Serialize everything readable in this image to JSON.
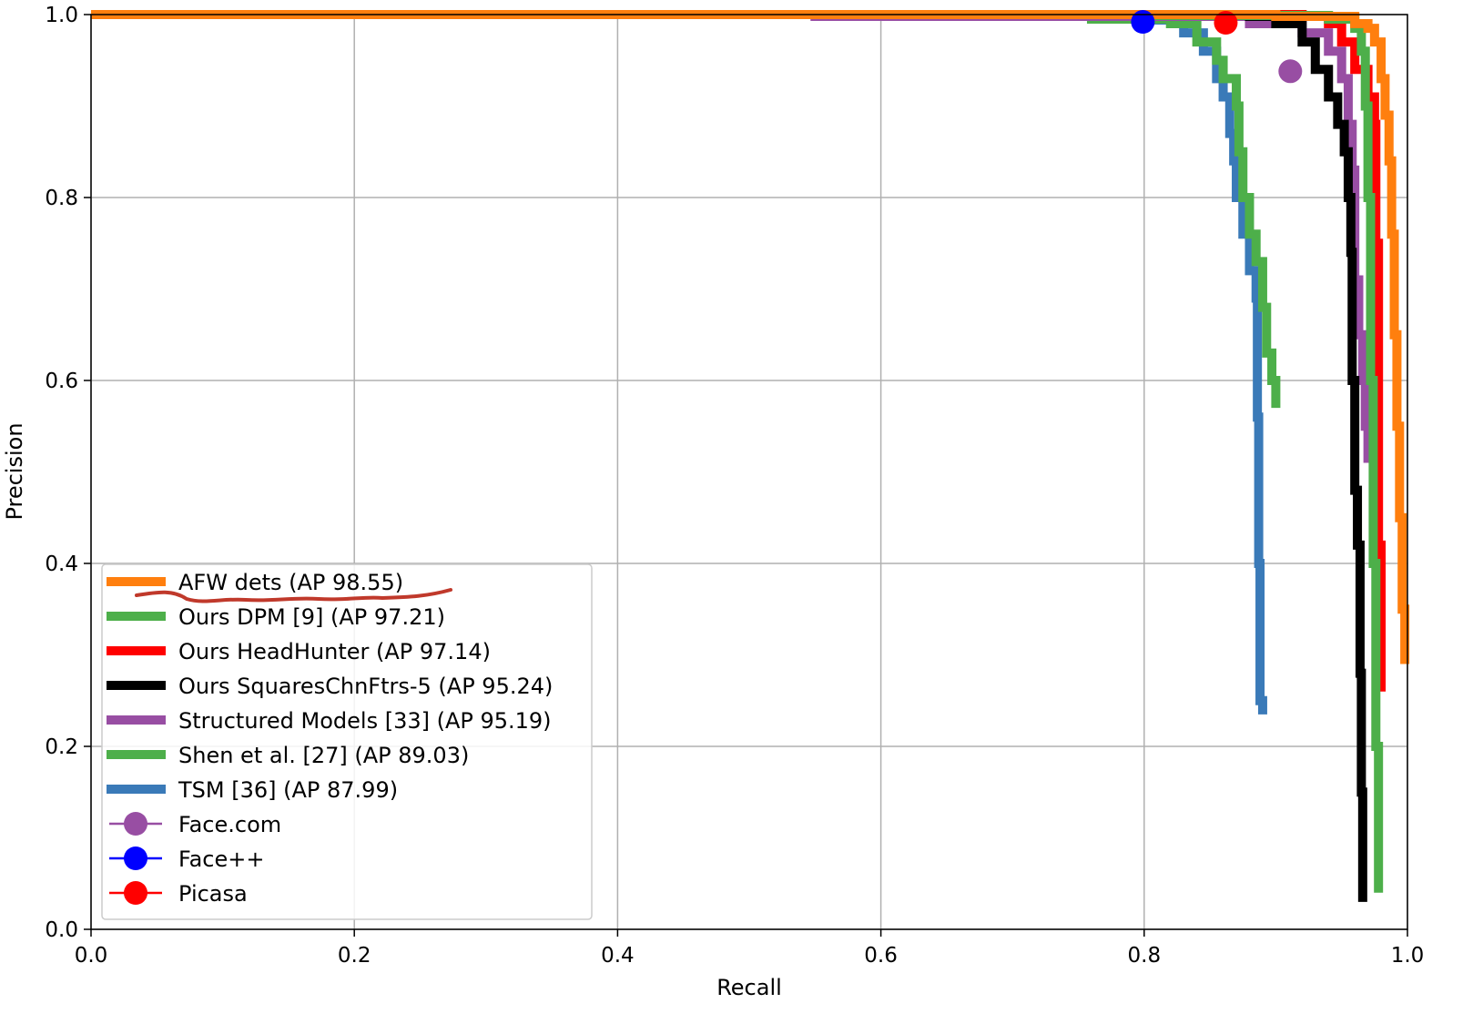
{
  "chart_data": {
    "type": "line",
    "title": "",
    "xlabel": "Recall",
    "ylabel": "Precision",
    "xlim": [
      0.0,
      1.0
    ],
    "ylim": [
      0.0,
      1.0
    ],
    "grid": true,
    "legend_position": "lower-left",
    "x_ticks": [
      "0.0",
      "0.2",
      "0.4",
      "0.6",
      "0.8",
      "1.0"
    ],
    "y_ticks": [
      "0.0",
      "0.2",
      "0.4",
      "0.6",
      "0.8",
      "1.0"
    ],
    "series": [
      {
        "name": "TSM [36] (AP 87.99)",
        "color": "#3a7ab8",
        "points": [
          [
            0.0,
            1.0
          ],
          [
            0.76,
            0.998
          ],
          [
            0.8,
            0.994
          ],
          [
            0.83,
            0.98
          ],
          [
            0.845,
            0.96
          ],
          [
            0.855,
            0.93
          ],
          [
            0.86,
            0.91
          ],
          [
            0.865,
            0.87
          ],
          [
            0.868,
            0.84
          ],
          [
            0.87,
            0.8
          ],
          [
            0.875,
            0.76
          ],
          [
            0.88,
            0.72
          ],
          [
            0.885,
            0.69
          ],
          [
            0.886,
            0.56
          ],
          [
            0.887,
            0.4
          ],
          [
            0.888,
            0.25
          ],
          [
            0.89,
            0.235
          ]
        ]
      },
      {
        "name": "Shen et al. [27] (AP 89.03)",
        "color": "#4daf4a",
        "points": [
          [
            0.0,
            1.0
          ],
          [
            0.76,
            0.995
          ],
          [
            0.82,
            0.99
          ],
          [
            0.84,
            0.97
          ],
          [
            0.855,
            0.95
          ],
          [
            0.86,
            0.93
          ],
          [
            0.87,
            0.9
          ],
          [
            0.872,
            0.85
          ],
          [
            0.875,
            0.8
          ],
          [
            0.88,
            0.76
          ],
          [
            0.885,
            0.73
          ],
          [
            0.89,
            0.68
          ],
          [
            0.893,
            0.63
          ],
          [
            0.897,
            0.6
          ],
          [
            0.9,
            0.57
          ]
        ]
      },
      {
        "name": "Structured Models [33] (AP 95.19)",
        "color": "#984ea3",
        "points": [
          [
            0.0,
            1.0
          ],
          [
            0.55,
            0.998
          ],
          [
            0.6,
            0.998
          ],
          [
            0.88,
            0.99
          ],
          [
            0.92,
            0.98
          ],
          [
            0.94,
            0.96
          ],
          [
            0.95,
            0.93
          ],
          [
            0.955,
            0.88
          ],
          [
            0.958,
            0.83
          ],
          [
            0.96,
            0.71
          ],
          [
            0.963,
            0.65
          ],
          [
            0.966,
            0.6
          ],
          [
            0.968,
            0.55
          ],
          [
            0.97,
            0.51
          ]
        ]
      },
      {
        "name": "Ours SquaresChnFtrs-5 (AP 95.24)",
        "color": "#000000",
        "points": [
          [
            0.0,
            1.0
          ],
          [
            0.88,
            0.998
          ],
          [
            0.9,
            0.99
          ],
          [
            0.92,
            0.97
          ],
          [
            0.93,
            0.94
          ],
          [
            0.94,
            0.91
          ],
          [
            0.947,
            0.88
          ],
          [
            0.952,
            0.85
          ],
          [
            0.955,
            0.8
          ],
          [
            0.957,
            0.74
          ],
          [
            0.958,
            0.6
          ],
          [
            0.96,
            0.48
          ],
          [
            0.962,
            0.42
          ],
          [
            0.964,
            0.28
          ],
          [
            0.965,
            0.15
          ],
          [
            0.966,
            0.03
          ]
        ]
      },
      {
        "name": "Ours HeadHunter (AP 97.14)",
        "color": "#ff0000",
        "points": [
          [
            0.0,
            1.0
          ],
          [
            0.92,
            0.998
          ],
          [
            0.94,
            0.99
          ],
          [
            0.95,
            0.97
          ],
          [
            0.96,
            0.94
          ],
          [
            0.97,
            0.91
          ],
          [
            0.975,
            0.88
          ],
          [
            0.976,
            0.75
          ],
          [
            0.978,
            0.42
          ],
          [
            0.98,
            0.26
          ]
        ]
      },
      {
        "name": "Ours DPM [9] (AP 97.21)",
        "color": "#4daf4a",
        "points": [
          [
            0.0,
            1.0
          ],
          [
            0.8,
            0.999
          ],
          [
            0.94,
            0.995
          ],
          [
            0.96,
            0.985
          ],
          [
            0.965,
            0.96
          ],
          [
            0.968,
            0.9
          ],
          [
            0.97,
            0.8
          ],
          [
            0.972,
            0.6
          ],
          [
            0.974,
            0.4
          ],
          [
            0.976,
            0.2
          ],
          [
            0.978,
            0.04
          ]
        ]
      },
      {
        "name": "AFW dets (AP 98.55)",
        "color": "#ff7f0e",
        "points": [
          [
            0.0,
            1.0
          ],
          [
            0.9,
            0.998
          ],
          [
            0.96,
            0.99
          ],
          [
            0.97,
            0.985
          ],
          [
            0.975,
            0.97
          ],
          [
            0.98,
            0.93
          ],
          [
            0.983,
            0.89
          ],
          [
            0.986,
            0.84
          ],
          [
            0.988,
            0.76
          ],
          [
            0.99,
            0.65
          ],
          [
            0.992,
            0.55
          ],
          [
            0.994,
            0.45
          ],
          [
            0.996,
            0.35
          ],
          [
            0.998,
            0.29
          ]
        ]
      }
    ],
    "markers": [
      {
        "name": "Face.com",
        "color": "#984ea3",
        "x": 0.911,
        "y": 0.938
      },
      {
        "name": "Face++",
        "color": "#0000ff",
        "x": 0.799,
        "y": 0.992
      },
      {
        "name": "Picasa",
        "color": "#ff0000",
        "x": 0.862,
        "y": 0.991
      }
    ],
    "legend": [
      {
        "label": "AFW dets (AP 98.55)",
        "color": "#ff7f0e",
        "kind": "line"
      },
      {
        "label": "Ours DPM [9] (AP 97.21)",
        "color": "#4daf4a",
        "kind": "line"
      },
      {
        "label": "Ours HeadHunter (AP 97.14)",
        "color": "#ff0000",
        "kind": "line"
      },
      {
        "label": "Ours SquaresChnFtrs-5 (AP 95.24)",
        "color": "#000000",
        "kind": "line"
      },
      {
        "label": "Structured Models [33] (AP 95.19)",
        "color": "#984ea3",
        "kind": "line"
      },
      {
        "label": "Shen et al. [27] (AP 89.03)",
        "color": "#4daf4a",
        "kind": "line"
      },
      {
        "label": "TSM [36] (AP 87.99)",
        "color": "#3a7ab8",
        "kind": "line"
      },
      {
        "label": "Face.com",
        "color": "#984ea3",
        "kind": "marker"
      },
      {
        "label": "Face++",
        "color": "#0000ff",
        "kind": "marker"
      },
      {
        "label": "Picasa",
        "color": "#ff0000",
        "kind": "marker"
      }
    ],
    "annotation": {
      "type": "underline",
      "color": "#c0392b",
      "under": "AFW dets (AP 98.55)"
    }
  }
}
